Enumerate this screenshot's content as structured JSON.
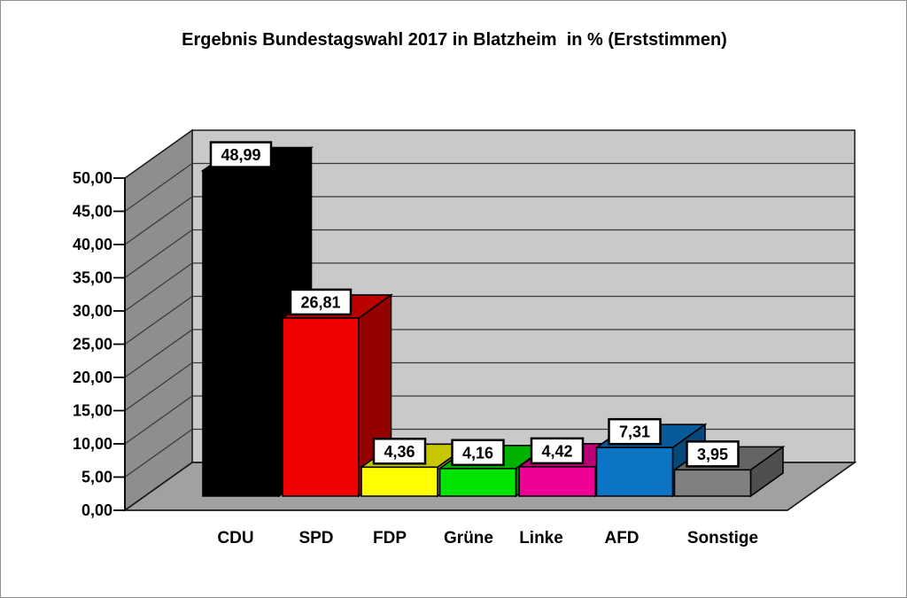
{
  "chart_data": {
    "type": "bar",
    "style": "3d-column",
    "title": "Ergebnis Bundestagswahl 2017 in Blatzheim  in % (Erststimmen)",
    "xlabel": "",
    "ylabel": "",
    "categories": [
      "CDU",
      "SPD",
      "FDP",
      "Grüne",
      "Linke",
      "AFD",
      "Sonstige"
    ],
    "values": [
      48.99,
      26.81,
      4.36,
      4.16,
      4.42,
      7.31,
      3.95
    ],
    "data_labels": [
      "48,99",
      "26,81",
      "4,36",
      "4,16",
      "4,42",
      "7,31",
      "3,95"
    ],
    "bar_colors": [
      "#000000",
      "#f00000",
      "#ffff00",
      "#00e400",
      "#f00096",
      "#0b74c4",
      "#808080"
    ],
    "ylim": [
      0,
      50
    ],
    "ytick_step": 5,
    "ytick_labels": [
      "0,00",
      "5,00",
      "10,00",
      "15,00",
      "20,00",
      "25,00",
      "30,00",
      "35,00",
      "40,00",
      "45,00",
      "50,00"
    ],
    "grid": true,
    "legend": false,
    "colors": {
      "background": "#ffffff",
      "frame_border": "#8f8f8f",
      "back_wall": "#c9c9c9",
      "side_wall": "#8e8e8e",
      "floor": "#a1a1a1",
      "gridline": "#3a3a3a",
      "outline": "#1c1c1c",
      "bar_outline": "#000000",
      "label_box_bg": "#ffffff",
      "label_box_border": "#000000",
      "text": "#000000"
    }
  }
}
